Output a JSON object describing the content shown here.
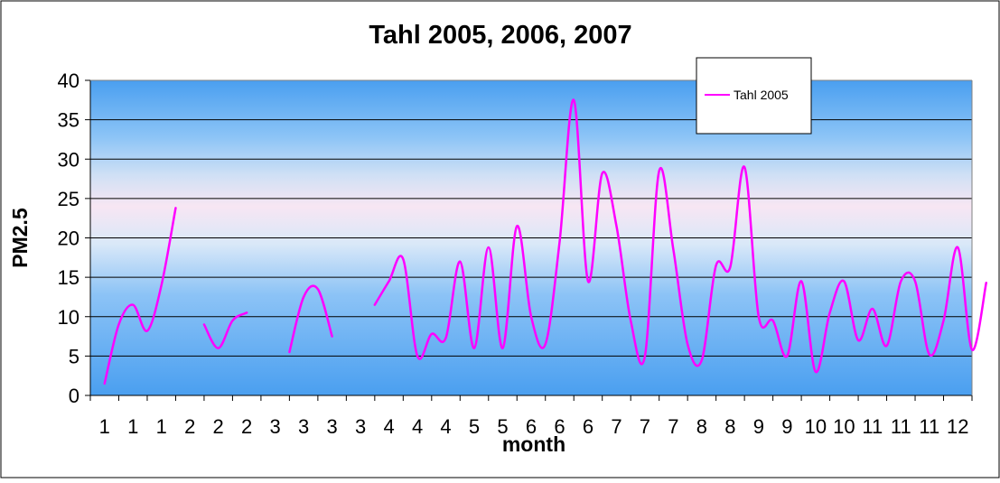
{
  "chart_data": {
    "type": "line",
    "title": "Tahl 2005, 2006, 2007",
    "xlabel": "month",
    "ylabel": "PM2.5",
    "ylim": [
      0,
      40
    ],
    "yticks": [
      0,
      5,
      10,
      15,
      20,
      25,
      30,
      35,
      40
    ],
    "xtick_labels": [
      "1",
      "1",
      "1",
      "2",
      "2",
      "2",
      "3",
      "3",
      "3",
      "3",
      "4",
      "4",
      "4",
      "5",
      "5",
      "6",
      "6",
      "6",
      "7",
      "7",
      "7",
      "8",
      "8",
      "9",
      "9",
      "10",
      "10",
      "11",
      "11",
      "11",
      "12"
    ],
    "grid": true,
    "legend_position": "top-right",
    "series": [
      {
        "name": "Tahl 2005",
        "color": "#ff00ff",
        "segments": [
          [
            [
              0.0,
              1.5
            ],
            [
              0.5,
              9.0
            ],
            [
              1.0,
              11.5
            ],
            [
              1.5,
              8.2
            ],
            [
              2.0,
              14.0
            ],
            [
              2.5,
              23.8
            ]
          ],
          [
            [
              3.5,
              9.0
            ],
            [
              4.0,
              6.0
            ],
            [
              4.5,
              9.5
            ],
            [
              5.0,
              10.5
            ]
          ],
          [
            [
              6.5,
              5.5
            ],
            [
              7.0,
              12.5
            ],
            [
              7.5,
              13.5
            ],
            [
              8.0,
              7.5
            ]
          ],
          [
            [
              9.5,
              11.5
            ],
            [
              10.0,
              14.5
            ],
            [
              10.5,
              17.3
            ],
            [
              11.0,
              5.0
            ],
            [
              11.5,
              7.8
            ],
            [
              12.0,
              7.3
            ],
            [
              12.5,
              17.0
            ],
            [
              13.0,
              6.0
            ],
            [
              13.5,
              18.8
            ],
            [
              14.0,
              6.0
            ],
            [
              14.5,
              21.5
            ],
            [
              15.0,
              10.0
            ],
            [
              15.5,
              6.5
            ],
            [
              16.0,
              19.5
            ],
            [
              16.5,
              37.5
            ],
            [
              17.0,
              14.5
            ],
            [
              17.5,
              28.2
            ],
            [
              18.0,
              21.5
            ],
            [
              18.5,
              9.5
            ],
            [
              19.0,
              5.0
            ],
            [
              19.5,
              28.5
            ],
            [
              20.0,
              18.5
            ],
            [
              20.5,
              6.5
            ],
            [
              21.0,
              4.5
            ],
            [
              21.5,
              16.5
            ],
            [
              22.0,
              16.3
            ],
            [
              22.5,
              29.0
            ],
            [
              23.0,
              10.0
            ],
            [
              23.5,
              9.5
            ],
            [
              24.0,
              5.0
            ],
            [
              24.5,
              14.5
            ],
            [
              25.0,
              3.0
            ],
            [
              25.5,
              10.5
            ],
            [
              26.0,
              14.5
            ],
            [
              26.5,
              7.0
            ],
            [
              27.0,
              11.0
            ],
            [
              27.5,
              6.3
            ],
            [
              28.0,
              14.5
            ],
            [
              28.5,
              14.5
            ],
            [
              29.0,
              5.2
            ],
            [
              29.5,
              9.5
            ],
            [
              30.0,
              18.8
            ],
            [
              30.5,
              5.8
            ],
            [
              31.0,
              14.3
            ]
          ]
        ]
      }
    ]
  }
}
